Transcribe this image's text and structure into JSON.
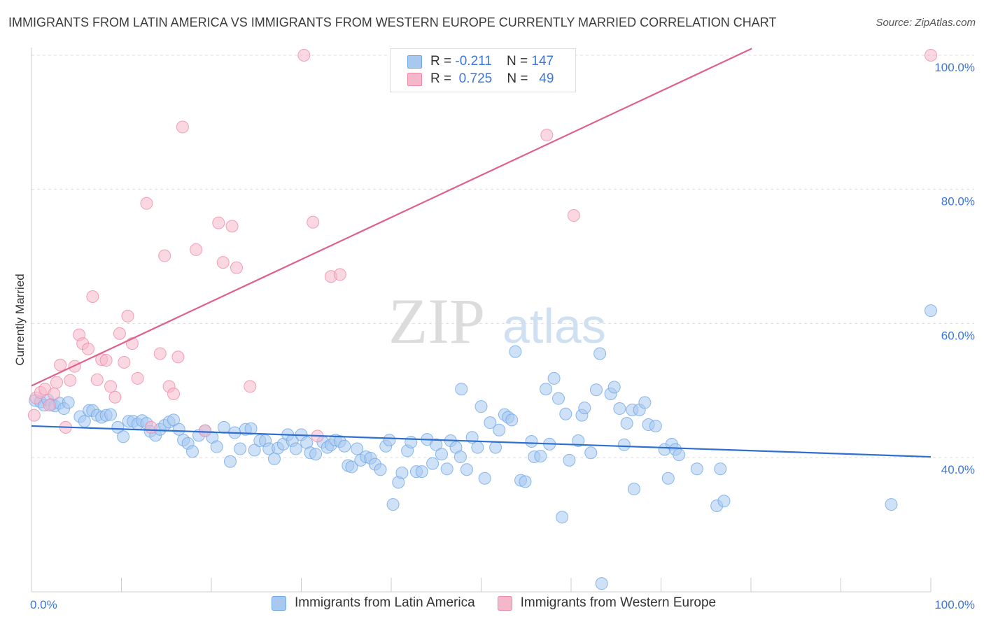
{
  "header": {
    "title": "IMMIGRANTS FROM LATIN AMERICA VS IMMIGRANTS FROM WESTERN EUROPE CURRENTLY MARRIED CORRELATION CHART",
    "source": "Source: ZipAtlas.com"
  },
  "watermark": {
    "zip": "ZIP",
    "atlas": "atlas"
  },
  "legend": {
    "rows": [
      {
        "r_label": "R =",
        "r_value": "-0.211",
        "n_label": "N =",
        "n_value": "147",
        "color": "#a8c8f0"
      },
      {
        "r_label": "R =",
        "r_value": "0.725",
        "n_label": "N =",
        "n_value": "49",
        "color": "#f5b8cb"
      }
    ]
  },
  "chart_data": {
    "type": "scatter",
    "ylabel": "Currently Married",
    "xlabel": "",
    "xlim": [
      0,
      100
    ],
    "ylim": [
      20,
      102
    ],
    "x_tick_labels": [
      "0.0%",
      "100.0%"
    ],
    "y_tick_labels": [
      "40.0%",
      "60.0%",
      "80.0%",
      "100.0%"
    ],
    "y_ticks": [
      40,
      60,
      80,
      100
    ],
    "grid": true,
    "legend_position": "top-center",
    "series": [
      {
        "name": "Immigrants from Latin America",
        "color": "#6fa8e8",
        "fill": "#a8c8f0",
        "line_color": "#2f6fd0",
        "trend": {
          "x": [
            0,
            100
          ],
          "y": [
            44.7,
            40.1
          ]
        },
        "points": [
          [
            0.4,
            48.5
          ],
          [
            1.0,
            48.3
          ],
          [
            1.4,
            47.8
          ],
          [
            1.8,
            48.6
          ],
          [
            2.2,
            47.9
          ],
          [
            2.6,
            47.7
          ],
          [
            3.1,
            48.1
          ],
          [
            3.6,
            47.3
          ],
          [
            4.1,
            48.2
          ],
          [
            5.4,
            46.1
          ],
          [
            5.9,
            45.4
          ],
          [
            6.4,
            47.0
          ],
          [
            6.8,
            47.0
          ],
          [
            7.3,
            46.3
          ],
          [
            7.8,
            46.0
          ],
          [
            8.3,
            46.3
          ],
          [
            8.8,
            46.4
          ],
          [
            9.6,
            44.5
          ],
          [
            10.2,
            43.1
          ],
          [
            10.8,
            45.4
          ],
          [
            11.3,
            45.4
          ],
          [
            11.8,
            45.0
          ],
          [
            12.3,
            45.5
          ],
          [
            12.8,
            45.1
          ],
          [
            13.2,
            43.9
          ],
          [
            13.8,
            43.3
          ],
          [
            14.3,
            44.2
          ],
          [
            14.8,
            44.8
          ],
          [
            15.3,
            45.3
          ],
          [
            15.8,
            45.6
          ],
          [
            16.4,
            44.2
          ],
          [
            16.9,
            42.6
          ],
          [
            17.4,
            42.1
          ],
          [
            17.9,
            40.9
          ],
          [
            18.6,
            43.3
          ],
          [
            19.3,
            44.0
          ],
          [
            20.1,
            43.0
          ],
          [
            20.6,
            41.6
          ],
          [
            21.4,
            44.5
          ],
          [
            22.1,
            39.4
          ],
          [
            22.6,
            43.7
          ],
          [
            23.2,
            41.3
          ],
          [
            23.8,
            44.2
          ],
          [
            24.4,
            44.3
          ],
          [
            24.8,
            41.1
          ],
          [
            25.4,
            42.5
          ],
          [
            26.0,
            42.5
          ],
          [
            26.4,
            41.3
          ],
          [
            27.0,
            39.8
          ],
          [
            27.4,
            41.4
          ],
          [
            28.0,
            42.0
          ],
          [
            28.5,
            43.4
          ],
          [
            29.0,
            42.5
          ],
          [
            29.4,
            41.3
          ],
          [
            30.0,
            43.4
          ],
          [
            30.6,
            42.2
          ],
          [
            31.0,
            40.7
          ],
          [
            31.6,
            40.5
          ],
          [
            32.4,
            42.3
          ],
          [
            32.9,
            41.5
          ],
          [
            33.3,
            41.9
          ],
          [
            33.8,
            42.6
          ],
          [
            34.3,
            42.4
          ],
          [
            34.8,
            41.7
          ],
          [
            35.2,
            38.8
          ],
          [
            35.6,
            38.6
          ],
          [
            36.2,
            41.3
          ],
          [
            36.6,
            39.6
          ],
          [
            37.2,
            40.1
          ],
          [
            37.7,
            39.9
          ],
          [
            38.2,
            39.0
          ],
          [
            38.8,
            38.2
          ],
          [
            39.4,
            41.7
          ],
          [
            39.8,
            42.6
          ],
          [
            40.2,
            33.0
          ],
          [
            40.8,
            36.3
          ],
          [
            41.2,
            37.7
          ],
          [
            41.8,
            41.0
          ],
          [
            42.2,
            42.3
          ],
          [
            42.8,
            37.9
          ],
          [
            43.4,
            37.9
          ],
          [
            44.0,
            42.7
          ],
          [
            44.6,
            39.1
          ],
          [
            45.0,
            41.9
          ],
          [
            45.6,
            40.5
          ],
          [
            46.2,
            38.3
          ],
          [
            46.6,
            42.5
          ],
          [
            47.2,
            41.5
          ],
          [
            47.7,
            40.1
          ],
          [
            47.8,
            50.2
          ],
          [
            48.4,
            38.2
          ],
          [
            49.0,
            43.0
          ],
          [
            49.6,
            41.5
          ],
          [
            50.0,
            47.6
          ],
          [
            50.4,
            36.9
          ],
          [
            51.0,
            45.2
          ],
          [
            51.6,
            41.5
          ],
          [
            52.0,
            44.1
          ],
          [
            52.6,
            46.4
          ],
          [
            53.0,
            46.0
          ],
          [
            53.4,
            45.6
          ],
          [
            53.8,
            55.8
          ],
          [
            54.4,
            36.6
          ],
          [
            54.9,
            36.4
          ],
          [
            55.6,
            42.4
          ],
          [
            55.9,
            40.1
          ],
          [
            56.6,
            40.2
          ],
          [
            57.2,
            50.2
          ],
          [
            57.6,
            42.0
          ],
          [
            58.1,
            51.8
          ],
          [
            58.6,
            48.8
          ],
          [
            59.0,
            31.1
          ],
          [
            59.4,
            46.5
          ],
          [
            59.8,
            39.6
          ],
          [
            60.8,
            42.5
          ],
          [
            61.2,
            46.3
          ],
          [
            61.5,
            47.4
          ],
          [
            62.2,
            40.7
          ],
          [
            62.8,
            50.1
          ],
          [
            63.2,
            55.5
          ],
          [
            64.4,
            49.5
          ],
          [
            64.8,
            50.5
          ],
          [
            65.4,
            47.3
          ],
          [
            65.9,
            41.9
          ],
          [
            66.2,
            45.1
          ],
          [
            66.8,
            47.1
          ],
          [
            67.0,
            35.3
          ],
          [
            67.6,
            47.1
          ],
          [
            68.2,
            48.2
          ],
          [
            68.6,
            44.9
          ],
          [
            69.4,
            44.7
          ],
          [
            70.4,
            41.2
          ],
          [
            70.8,
            36.9
          ],
          [
            71.2,
            42.0
          ],
          [
            71.6,
            41.2
          ],
          [
            72.0,
            40.4
          ],
          [
            74.0,
            38.3
          ],
          [
            76.2,
            32.8
          ],
          [
            76.6,
            38.3
          ],
          [
            77.0,
            33.5
          ],
          [
            95.6,
            33.0
          ],
          [
            100.0,
            61.9
          ],
          [
            63.4,
            21.2
          ]
        ]
      },
      {
        "name": "Immigrants from Western Europe",
        "color": "#f08aaa",
        "fill": "#f5b8cb",
        "line_color": "#e0608a",
        "trend": {
          "x": [
            0,
            80.1
          ],
          "y": [
            50.7,
            101.0
          ]
        },
        "points": [
          [
            0.3,
            46.3
          ],
          [
            0.5,
            48.9
          ],
          [
            1.0,
            49.7
          ],
          [
            1.5,
            50.2
          ],
          [
            2.0,
            47.8
          ],
          [
            2.5,
            49.5
          ],
          [
            2.8,
            51.2
          ],
          [
            3.2,
            53.8
          ],
          [
            3.8,
            44.5
          ],
          [
            4.3,
            51.5
          ],
          [
            4.8,
            53.6
          ],
          [
            5.3,
            58.3
          ],
          [
            5.7,
            57.0
          ],
          [
            6.3,
            56.2
          ],
          [
            6.8,
            64.0
          ],
          [
            7.3,
            51.6
          ],
          [
            7.8,
            54.6
          ],
          [
            8.3,
            54.5
          ],
          [
            8.8,
            50.6
          ],
          [
            9.3,
            49.0
          ],
          [
            9.8,
            58.5
          ],
          [
            10.3,
            54.2
          ],
          [
            10.7,
            61.1
          ],
          [
            11.2,
            57.0
          ],
          [
            11.8,
            51.8
          ],
          [
            12.8,
            77.9
          ],
          [
            13.3,
            44.5
          ],
          [
            14.3,
            55.5
          ],
          [
            14.8,
            70.1
          ],
          [
            15.3,
            50.6
          ],
          [
            15.8,
            49.5
          ],
          [
            16.3,
            55.0
          ],
          [
            16.8,
            89.3
          ],
          [
            18.3,
            71.0
          ],
          [
            19.3,
            44.0
          ],
          [
            20.8,
            75.0
          ],
          [
            21.3,
            69.1
          ],
          [
            22.3,
            74.5
          ],
          [
            22.8,
            68.3
          ],
          [
            24.3,
            50.6
          ],
          [
            30.3,
            100.0
          ],
          [
            31.3,
            75.1
          ],
          [
            31.8,
            43.2
          ],
          [
            33.3,
            67.0
          ],
          [
            34.3,
            67.3
          ],
          [
            47.8,
            100.0
          ],
          [
            57.3,
            88.1
          ],
          [
            60.3,
            76.1
          ],
          [
            100.0,
            100.0
          ]
        ]
      }
    ]
  }
}
